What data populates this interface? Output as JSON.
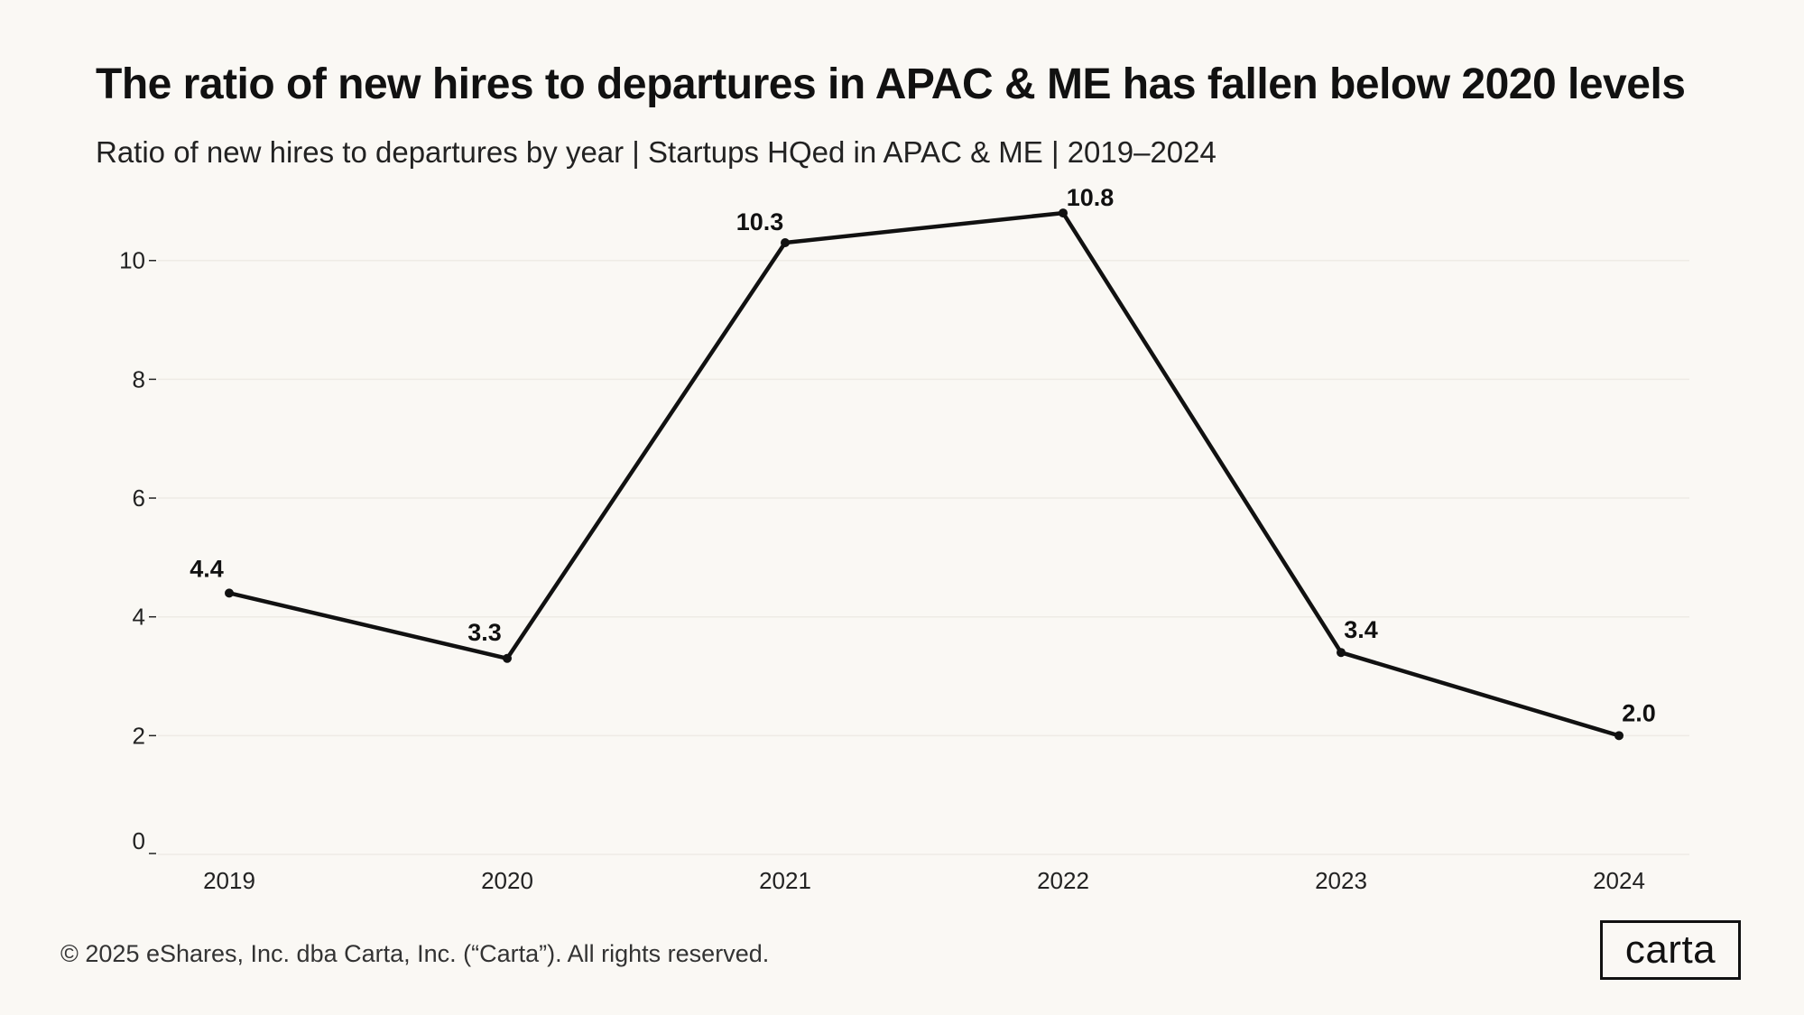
{
  "title": "The ratio of new hires to departures in APAC & ME has fallen below 2020 levels",
  "subtitle": "Ratio of new hires to departures by year | Startups HQed in APAC & ME | 2019–2024",
  "footer": "© 2025 eShares, Inc. dba Carta, Inc. (“Carta”). All rights reserved.",
  "logo": "carta",
  "colors": {
    "background": "#faf8f4",
    "line": "#111111",
    "grid": "#eeebe5"
  },
  "chart_data": {
    "type": "line",
    "title": "The ratio of new hires to departures in APAC & ME has fallen below 2020 levels",
    "subtitle": "Ratio of new hires to departures by year | Startups HQed in APAC & ME | 2019–2024",
    "xlabel": "",
    "ylabel": "",
    "categories": [
      "2019",
      "2020",
      "2021",
      "2022",
      "2023",
      "2024"
    ],
    "series": [
      {
        "name": "Ratio of new hires to departures",
        "values": [
          4.4,
          3.3,
          10.3,
          10.8,
          3.4,
          2.0
        ],
        "labels": [
          "4.4",
          "3.3",
          "10.3",
          "10.8",
          "3.4",
          "2.0"
        ]
      }
    ],
    "ylim": [
      0,
      11.5
    ],
    "yticks": [
      0,
      2,
      4,
      6,
      8,
      10
    ],
    "grid": true,
    "legend": "none"
  }
}
